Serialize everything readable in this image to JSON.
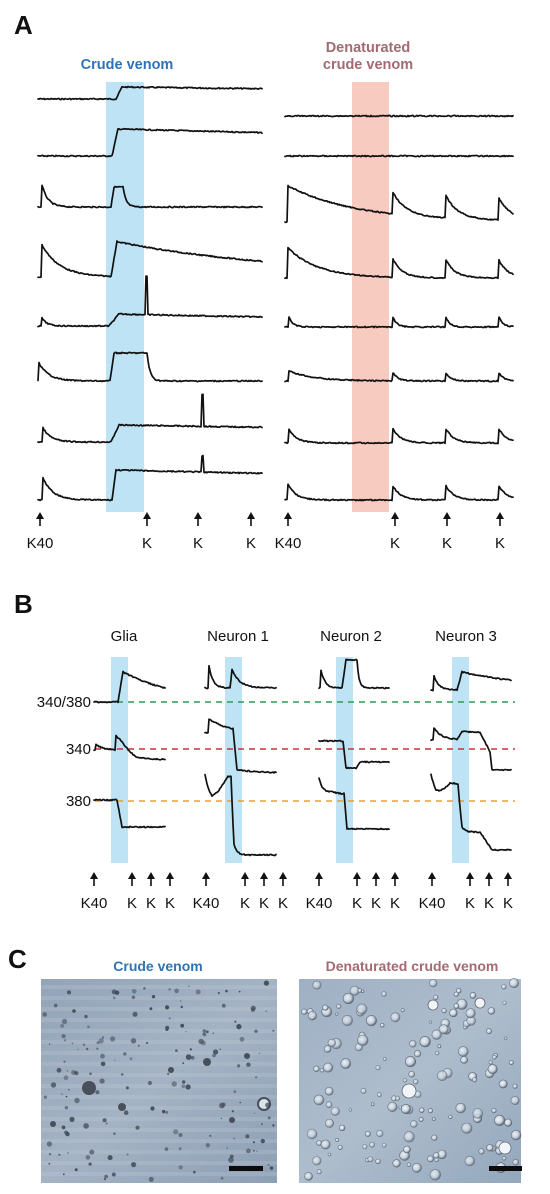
{
  "panels": {
    "A": {
      "letter": "A",
      "left_title": "Crude venom",
      "right_title_line1": "Denaturated",
      "right_title_line2": "crude venom",
      "left_arrows": [
        "K40",
        "K",
        "K",
        "K"
      ],
      "right_arrows": [
        "K40",
        "K",
        "K",
        "K"
      ],
      "highlight_left_color": "#bde3f5",
      "highlight_right_color": "#f8cbc0"
    },
    "B": {
      "letter": "B",
      "columns": [
        "Glia",
        "Neuron 1",
        "Neuron 2",
        "Neuron 3"
      ],
      "lines": [
        {
          "label": "340/380",
          "color": "#2e9e4e"
        },
        {
          "label": "340",
          "color": "#c8303c"
        },
        {
          "label": "380",
          "color": "#e8a030"
        }
      ],
      "arrows": [
        "K40",
        "K",
        "K",
        "K"
      ],
      "highlight_color": "#bde3f5"
    },
    "C": {
      "letter": "C",
      "left_title": "Crude venom",
      "right_title": "Denaturated crude venom"
    }
  }
}
